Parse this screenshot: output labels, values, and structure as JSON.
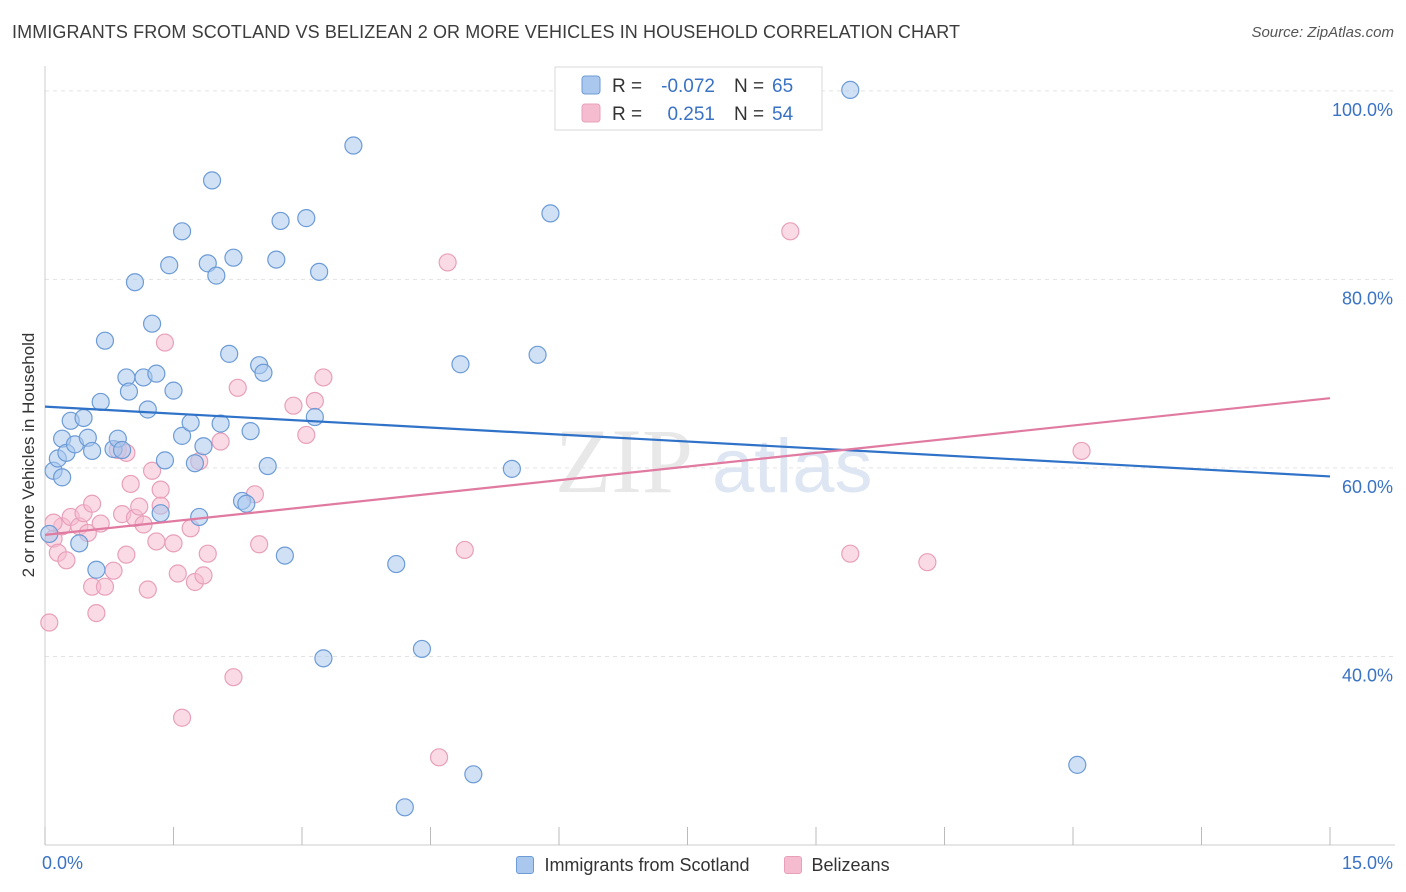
{
  "header": {
    "title": "IMMIGRANTS FROM SCOTLAND VS BELIZEAN 2 OR MORE VEHICLES IN HOUSEHOLD CORRELATION CHART",
    "source": "Source: ZipAtlas.com"
  },
  "watermark": {
    "zip": "ZIP",
    "atlas": "atlas"
  },
  "colors": {
    "blue_fill": "#aac8ee",
    "blue_stroke": "#6c9bd6",
    "blue_line": "#2f72c8",
    "pink_fill": "#f5bcd0",
    "pink_stroke": "#e8a0ba",
    "pink_line": "#e07aa0",
    "axis_text": "#3a72c4",
    "grid": "#e3e3e3"
  },
  "chart_data": {
    "type": "scatter",
    "title": "IMMIGRANTS FROM SCOTLAND VS BELIZEAN 2 OR MORE VEHICLES IN HOUSEHOLD CORRELATION CHART",
    "xlabel": "",
    "ylabel": "2 or more Vehicles in Household",
    "xlim": [
      0,
      15
    ],
    "ylim": [
      20,
      102
    ],
    "x_tick_labels": [
      "0.0%",
      "15.0%"
    ],
    "y_ticks": [
      40,
      60,
      80,
      100
    ],
    "y_tick_labels": [
      "40.0%",
      "60.0%",
      "80.0%",
      "100.0%"
    ],
    "grid": true,
    "legend": {
      "position": "top-center",
      "entries": [
        {
          "r_label": "R =",
          "r_value": "-0.072",
          "n_label": "N =",
          "n_value": "65"
        },
        {
          "r_label": "R =",
          "r_value": "0.251",
          "n_label": "N =",
          "n_value": "54"
        }
      ]
    },
    "series": [
      {
        "name": "Immigrants from Scotland",
        "trend": {
          "x": [
            0,
            15
          ],
          "y": [
            66.5,
            59.1
          ]
        },
        "points": [
          [
            0.05,
            53
          ],
          [
            0.1,
            59.7
          ],
          [
            0.15,
            61
          ],
          [
            0.2,
            59
          ],
          [
            0.2,
            63.1
          ],
          [
            0.25,
            61.6
          ],
          [
            0.3,
            65
          ],
          [
            0.35,
            62.5
          ],
          [
            0.45,
            65.3
          ],
          [
            0.5,
            63.2
          ],
          [
            0.55,
            61.8
          ],
          [
            0.4,
            52
          ],
          [
            0.6,
            49.2
          ],
          [
            0.65,
            67
          ],
          [
            0.7,
            73.5
          ],
          [
            0.8,
            62
          ],
          [
            0.85,
            63.1
          ],
          [
            0.9,
            61.9
          ],
          [
            0.95,
            69.6
          ],
          [
            0.98,
            68.1
          ],
          [
            1.05,
            79.7
          ],
          [
            1.15,
            69.6
          ],
          [
            1.2,
            66.2
          ],
          [
            1.25,
            75.3
          ],
          [
            1.3,
            70
          ],
          [
            1.35,
            55.2
          ],
          [
            1.4,
            60.8
          ],
          [
            1.45,
            81.5
          ],
          [
            1.5,
            68.2
          ],
          [
            1.6,
            85.1
          ],
          [
            1.6,
            63.4
          ],
          [
            1.7,
            64.8
          ],
          [
            1.75,
            60.5
          ],
          [
            1.8,
            54.8
          ],
          [
            1.85,
            62.3
          ],
          [
            1.9,
            81.7
          ],
          [
            1.95,
            90.5
          ],
          [
            2.0,
            80.4
          ],
          [
            2.05,
            64.7
          ],
          [
            2.15,
            72.1
          ],
          [
            2.2,
            82.3
          ],
          [
            2.3,
            56.5
          ],
          [
            2.35,
            56.2
          ],
          [
            2.4,
            63.9
          ],
          [
            2.5,
            70.9
          ],
          [
            2.55,
            70.1
          ],
          [
            2.6,
            60.2
          ],
          [
            2.7,
            82.1
          ],
          [
            2.75,
            86.2
          ],
          [
            2.8,
            50.7
          ],
          [
            3.05,
            86.5
          ],
          [
            3.15,
            65.4
          ],
          [
            3.2,
            80.8
          ],
          [
            3.25,
            39.8
          ],
          [
            3.6,
            94.2
          ],
          [
            4.1,
            49.8
          ],
          [
            4.2,
            24
          ],
          [
            4.4,
            40.8
          ],
          [
            4.85,
            71
          ],
          [
            5.0,
            27.5
          ],
          [
            5.45,
            59.9
          ],
          [
            5.75,
            72
          ],
          [
            5.9,
            87
          ],
          [
            9.4,
            100.1
          ],
          [
            12.05,
            28.5
          ]
        ]
      },
      {
        "name": "Belizeans",
        "trend": {
          "x": [
            0,
            15
          ],
          "y": [
            52.9,
            67.4
          ]
        },
        "points": [
          [
            0.05,
            43.6
          ],
          [
            0.1,
            52.5
          ],
          [
            0.15,
            51
          ],
          [
            0.2,
            53.8
          ],
          [
            0.25,
            50.2
          ],
          [
            0.3,
            54.8
          ],
          [
            0.4,
            53.8
          ],
          [
            0.45,
            55.2
          ],
          [
            0.5,
            53.1
          ],
          [
            0.55,
            47.4
          ],
          [
            0.55,
            56.2
          ],
          [
            0.6,
            44.6
          ],
          [
            0.65,
            54.1
          ],
          [
            0.7,
            47.4
          ],
          [
            0.8,
            49.1
          ],
          [
            0.85,
            61.9
          ],
          [
            0.9,
            55.1
          ],
          [
            0.95,
            61.6
          ],
          [
            0.95,
            50.8
          ],
          [
            1.0,
            58.3
          ],
          [
            1.05,
            54.7
          ],
          [
            1.1,
            55.9
          ],
          [
            1.15,
            54
          ],
          [
            1.2,
            47.1
          ],
          [
            1.25,
            59.7
          ],
          [
            1.3,
            52.2
          ],
          [
            1.35,
            56
          ],
          [
            1.35,
            57.7
          ],
          [
            1.4,
            73.3
          ],
          [
            1.5,
            52
          ],
          [
            1.55,
            48.8
          ],
          [
            1.6,
            33.5
          ],
          [
            1.7,
            53.6
          ],
          [
            1.75,
            47.9
          ],
          [
            1.8,
            60.7
          ],
          [
            1.85,
            48.6
          ],
          [
            1.9,
            50.9
          ],
          [
            2.05,
            62.8
          ],
          [
            2.2,
            37.8
          ],
          [
            2.25,
            68.5
          ],
          [
            2.45,
            57.2
          ],
          [
            2.5,
            51.9
          ],
          [
            2.9,
            66.6
          ],
          [
            3.05,
            63.5
          ],
          [
            3.15,
            67.1
          ],
          [
            3.25,
            69.6
          ],
          [
            4.6,
            29.3
          ],
          [
            4.7,
            81.8
          ],
          [
            4.9,
            51.3
          ],
          [
            8.7,
            85.1
          ],
          [
            9.4,
            50.9
          ],
          [
            10.3,
            50
          ],
          [
            12.1,
            61.8
          ],
          [
            0.1,
            54.2
          ]
        ]
      }
    ]
  },
  "legend_bottom": {
    "items": [
      {
        "label": "Immigrants from Scotland"
      },
      {
        "label": "Belizeans"
      }
    ]
  }
}
